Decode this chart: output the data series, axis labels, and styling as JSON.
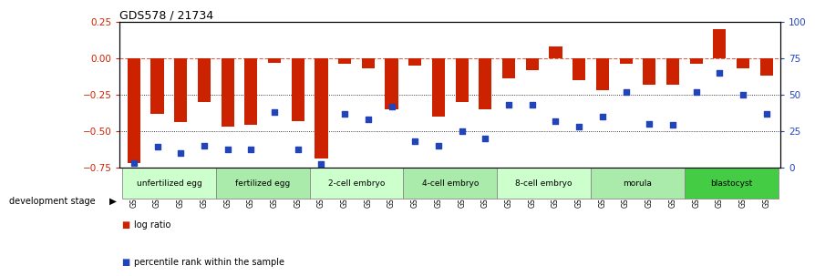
{
  "title": "GDS578 / 21734",
  "samples": [
    "GSM14658",
    "GSM14660",
    "GSM14661",
    "GSM14662",
    "GSM14663",
    "GSM14664",
    "GSM14665",
    "GSM14666",
    "GSM14667",
    "GSM14668",
    "GSM14677",
    "GSM14678",
    "GSM14679",
    "GSM14680",
    "GSM14681",
    "GSM14682",
    "GSM14683",
    "GSM14684",
    "GSM14685",
    "GSM14686",
    "GSM14687",
    "GSM14688",
    "GSM14689",
    "GSM14690",
    "GSM14691",
    "GSM14692",
    "GSM14693",
    "GSM14694"
  ],
  "log_ratio": [
    -0.72,
    -0.38,
    -0.44,
    -0.3,
    -0.47,
    -0.46,
    -0.03,
    -0.43,
    -0.69,
    -0.04,
    -0.07,
    -0.35,
    -0.05,
    -0.4,
    -0.3,
    -0.35,
    -0.14,
    -0.08,
    0.08,
    -0.15,
    -0.22,
    -0.04,
    -0.18,
    -0.18,
    -0.04,
    0.2,
    -0.07,
    -0.12
  ],
  "percentile_rank": [
    3,
    14,
    10,
    15,
    12,
    12,
    38,
    12,
    2,
    37,
    33,
    42,
    18,
    15,
    25,
    20,
    43,
    43,
    32,
    28,
    35,
    52,
    30,
    29,
    52,
    65,
    50,
    37
  ],
  "stages": [
    {
      "label": "unfertilized egg",
      "start": 0,
      "end": 4,
      "color": "#ccffcc"
    },
    {
      "label": "fertilized egg",
      "start": 4,
      "end": 8,
      "color": "#aaeaaa"
    },
    {
      "label": "2-cell embryo",
      "start": 8,
      "end": 12,
      "color": "#ccffcc"
    },
    {
      "label": "4-cell embryo",
      "start": 12,
      "end": 16,
      "color": "#aaeaaa"
    },
    {
      "label": "8-cell embryo",
      "start": 16,
      "end": 20,
      "color": "#ccffcc"
    },
    {
      "label": "morula",
      "start": 20,
      "end": 24,
      "color": "#aaeaaa"
    },
    {
      "label": "blastocyst",
      "start": 24,
      "end": 28,
      "color": "#44cc44"
    }
  ],
  "bar_color": "#cc2200",
  "scatter_color": "#2244bb",
  "ylim_left": [
    -0.75,
    0.25
  ],
  "ylim_right": [
    0,
    100
  ],
  "yticks_left": [
    0.25,
    0.0,
    -0.25,
    -0.5,
    -0.75
  ],
  "yticks_right": [
    100,
    75,
    50,
    25,
    0
  ],
  "hlines_dashed": [
    0.0
  ],
  "hlines_dotted": [
    -0.25,
    -0.5
  ]
}
